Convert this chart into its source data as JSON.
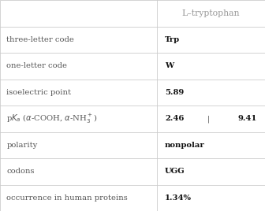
{
  "title": "L–tryptophan",
  "col_split": 0.592,
  "rows": [
    {
      "label": "three-letter code",
      "value": "Trp"
    },
    {
      "label": "one-letter code",
      "value": "W"
    },
    {
      "label": "isoelectric point",
      "value": "5.89"
    },
    {
      "label": "pKa_special",
      "value": "pka_special"
    },
    {
      "label": "polarity",
      "value": "nonpolar"
    },
    {
      "label": "codons",
      "value": "UGG"
    },
    {
      "label": "occurrence in human proteins",
      "value": "1.34%"
    }
  ],
  "bg_color": "#ffffff",
  "header_text_color": "#999999",
  "label_text_color": "#555555",
  "value_text_color": "#111111",
  "grid_color": "#cccccc",
  "font_size": 7.2,
  "header_font_size": 7.8
}
